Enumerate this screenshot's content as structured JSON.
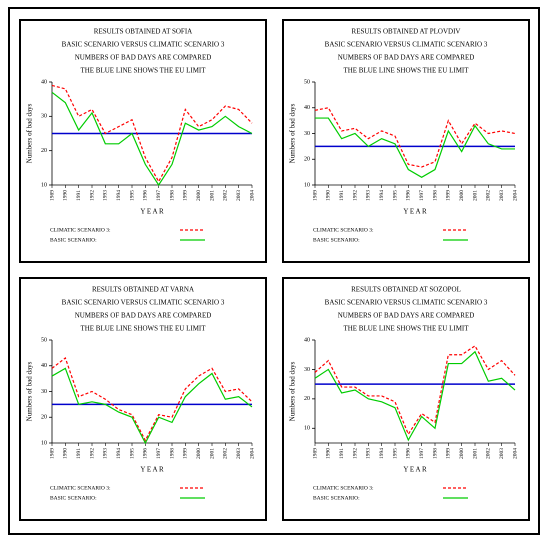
{
  "chart_data": [
    {
      "type": "line",
      "title_lines": [
        "RESULTS OBTAINED AT SOFIA",
        "BASIC SCENARIO VERSUS CLIMATIC SCENARIO 3",
        "NUMBERS OF BAD DAYS ARE COMPARED",
        "THE BLUE LINE SHOWS THE EU LIMIT"
      ],
      "x_label": "Y E A R",
      "y_label": "Numbers of bad days",
      "categories": [
        "1989",
        "1990",
        "1991",
        "1992",
        "1993",
        "1994",
        "1995",
        "1996",
        "1997",
        "1998",
        "1999",
        "2000",
        "2001",
        "2002",
        "2003",
        "2004"
      ],
      "series": [
        {
          "name": "CLIMATIC SCENARIO 3:",
          "color": "#ff0000",
          "dashed": true,
          "values": [
            39,
            38,
            30,
            32,
            25,
            27,
            29,
            18,
            11,
            18,
            32,
            27,
            29,
            33,
            32,
            28
          ]
        },
        {
          "name": "BASIC SCENARIO:",
          "color": "#00cc00",
          "dashed": false,
          "values": [
            37,
            34,
            26,
            31,
            22,
            22,
            25,
            16,
            10,
            16,
            28,
            26,
            27,
            30,
            27,
            25
          ]
        }
      ],
      "limit": 25,
      "limit_color": "#0000cc",
      "ylim": [
        10,
        40
      ],
      "yticks": [
        10,
        20,
        30,
        40
      ]
    },
    {
      "type": "line",
      "title_lines": [
        "RESULTS OBTAINED AT PLOVDIV",
        "BASIC SCENARIO VERSUS CLIMATIC SCENARIO 3",
        "NUMBERS OF BAD DAYS ARE COMPARED",
        "THE BLUE LINE SHOWS THE EU LIMIT"
      ],
      "x_label": "Y E A R",
      "y_label": "Numbers of bad days",
      "categories": [
        "1989",
        "1990",
        "1991",
        "1992",
        "1993",
        "1994",
        "1995",
        "1996",
        "1997",
        "1998",
        "1999",
        "2000",
        "2001",
        "2002",
        "2003",
        "2004"
      ],
      "series": [
        {
          "name": "CLIMATIC SCENARIO 3:",
          "color": "#ff0000",
          "dashed": true,
          "values": [
            39,
            40,
            31,
            32,
            28,
            31,
            29,
            18,
            17,
            19,
            35,
            26,
            34,
            30,
            31,
            30
          ]
        },
        {
          "name": "BASIC SCENARIO:",
          "color": "#00cc00",
          "dashed": false,
          "values": [
            36,
            36,
            28,
            30,
            25,
            28,
            26,
            16,
            13,
            16,
            31,
            23,
            33,
            26,
            24,
            24
          ]
        }
      ],
      "limit": 25,
      "limit_color": "#0000cc",
      "ylim": [
        10,
        50
      ],
      "yticks": [
        10,
        20,
        30,
        40,
        50
      ]
    },
    {
      "type": "line",
      "title_lines": [
        "RESULTS OBTAINED AT VARNA",
        "BASIC SCENARIO VERSUS CLIMATIC SCENARIO 3",
        "NUMBERS OF BAD DAYS ARE COMPARED",
        "THE BLUE LINE SHOWS THE EU LIMIT"
      ],
      "x_label": "Y E A R",
      "y_label": "Numbers of bad days",
      "categories": [
        "1989",
        "1990",
        "1991",
        "1992",
        "1993",
        "1994",
        "1995",
        "1996",
        "1997",
        "1998",
        "1999",
        "2000",
        "2001",
        "2002",
        "2003",
        "2004"
      ],
      "series": [
        {
          "name": "CLIMATIC SCENARIO 3:",
          "color": "#ff0000",
          "dashed": true,
          "values": [
            39,
            43,
            28,
            30,
            27,
            23,
            21,
            11,
            21,
            20,
            31,
            36,
            39,
            30,
            31,
            26
          ]
        },
        {
          "name": "BASIC SCENARIO:",
          "color": "#00cc00",
          "dashed": false,
          "values": [
            36,
            39,
            25,
            26,
            25,
            22,
            20,
            10,
            20,
            18,
            28,
            33,
            37,
            27,
            28,
            24
          ]
        }
      ],
      "limit": 25,
      "limit_color": "#0000cc",
      "ylim": [
        10,
        50
      ],
      "yticks": [
        10,
        20,
        30,
        40,
        50
      ]
    },
    {
      "type": "line",
      "title_lines": [
        "RESULTS OBTAINED AT SOZOPOL",
        "BASIC SCENARIO VERSUS CLIMATIC SCENARIO 3",
        "NUMBERS OF BAD DAYS ARE COMPARED",
        "THE BLUE LINE SHOWS THE EU LIMIT"
      ],
      "x_label": "Y E A R",
      "y_label": "Numbers of bad days",
      "categories": [
        "1989",
        "1990",
        "1991",
        "1992",
        "1993",
        "1994",
        "1995",
        "1996",
        "1997",
        "1998",
        "1999",
        "2000",
        "2001",
        "2002",
        "2003",
        "2004"
      ],
      "series": [
        {
          "name": "CLIMATIC SCENARIO 3:",
          "color": "#ff0000",
          "dashed": true,
          "values": [
            29,
            33,
            24,
            24,
            21,
            21,
            19,
            8,
            15,
            12,
            35,
            35,
            38,
            30,
            33,
            28
          ]
        },
        {
          "name": "BASIC SCENARIO:",
          "color": "#00cc00",
          "dashed": false,
          "values": [
            27,
            30,
            22,
            23,
            20,
            19,
            17,
            6,
            14,
            10,
            32,
            32,
            36,
            26,
            27,
            23
          ]
        }
      ],
      "limit": 25,
      "limit_color": "#0000cc",
      "ylim": [
        5,
        40
      ],
      "yticks": [
        10,
        20,
        30,
        40
      ]
    }
  ]
}
